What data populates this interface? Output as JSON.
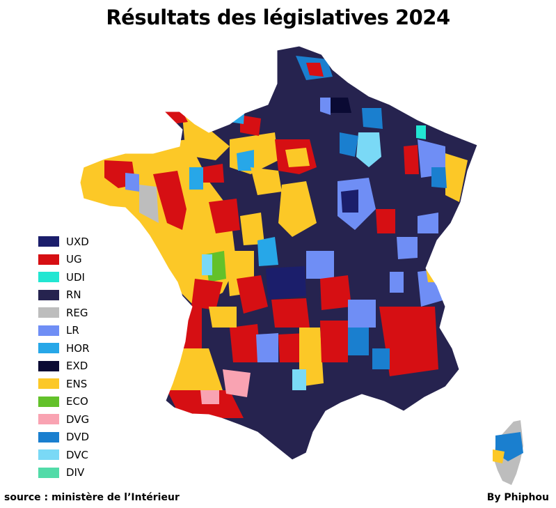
{
  "title": "Résultats des législatives 2024",
  "legend": [
    {
      "code": "UXD",
      "color": "#1b1e6b"
    },
    {
      "code": "UG",
      "color": "#d60f13"
    },
    {
      "code": "UDI",
      "color": "#22e6d2"
    },
    {
      "code": "RN",
      "color": "#26234f"
    },
    {
      "code": "REG",
      "color": "#bdbdbd"
    },
    {
      "code": "LR",
      "color": "#6f8ef5"
    },
    {
      "code": "HOR",
      "color": "#27a7e8"
    },
    {
      "code": "EXD",
      "color": "#0a0a33"
    },
    {
      "code": "ENS",
      "color": "#fcc827"
    },
    {
      "code": "ECO",
      "color": "#63c12a"
    },
    {
      "code": "DVG",
      "color": "#f9a3b2"
    },
    {
      "code": "DVD",
      "color": "#1a7fcf"
    },
    {
      "code": "DVC",
      "color": "#7ad9f6"
    },
    {
      "code": "DIV",
      "color": "#52dba8"
    }
  ],
  "source": "source : ministère de l’Intérieur",
  "credit": "By Phiphou"
}
